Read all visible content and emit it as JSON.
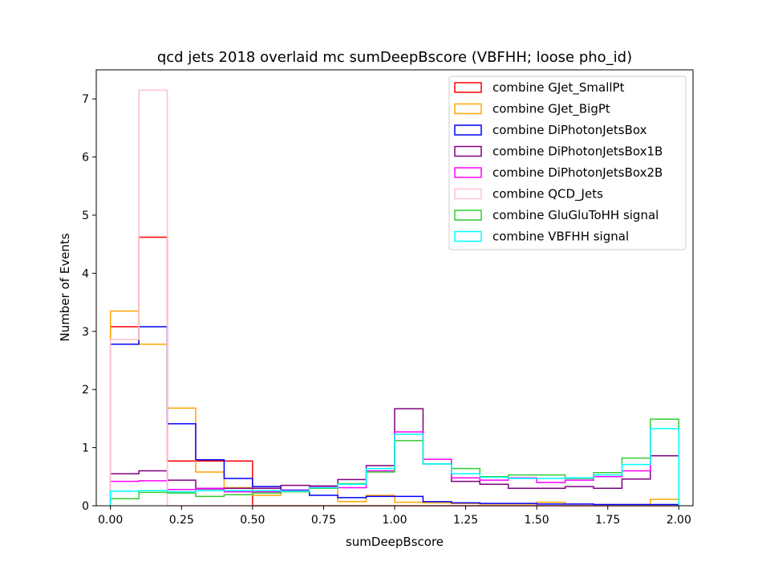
{
  "chart_data": {
    "type": "histogram-step",
    "title": "qcd jets 2018 overlaid mc sumDeepBscore (VBFHH; loose pho_id)",
    "xlabel": "sumDeepBscore",
    "ylabel": "Number of Events",
    "xlim": [
      -0.05,
      2.05
    ],
    "ylim": [
      0,
      7.5
    ],
    "bin_edges": [
      0.0,
      0.1,
      0.2,
      0.3,
      0.4,
      0.5,
      0.6,
      0.7,
      0.8,
      0.9,
      1.0,
      1.1,
      1.2,
      1.3,
      1.4,
      1.5,
      1.6,
      1.7,
      1.8,
      1.9,
      2.0
    ],
    "x_ticks": [
      "0.00",
      "0.25",
      "0.50",
      "0.75",
      "1.00",
      "1.25",
      "1.50",
      "1.75",
      "2.00"
    ],
    "y_ticks": [
      "0",
      "1",
      "2",
      "3",
      "4",
      "5",
      "6",
      "7"
    ],
    "legend_position": "upper right",
    "series": [
      {
        "name": "combine GJet_SmallPt",
        "color": "#ff0000",
        "values": [
          3.08,
          4.62,
          0.77,
          0.77,
          0.77,
          0,
          0,
          0,
          0,
          0,
          0,
          0,
          0,
          0,
          0,
          0,
          0,
          0,
          0,
          0
        ]
      },
      {
        "name": "combine GJet_BigPt",
        "color": "#ffa500",
        "values": [
          3.35,
          2.78,
          1.68,
          0.58,
          0.31,
          0.18,
          0.26,
          0.31,
          0.07,
          0.18,
          0.06,
          0.05,
          0.04,
          0.03,
          0.03,
          0.06,
          0.03,
          0.02,
          0.02,
          0.11
        ]
      },
      {
        "name": "combine DiPhotonJetsBox",
        "color": "#0000ff",
        "values": [
          2.78,
          3.08,
          1.41,
          0.79,
          0.47,
          0.33,
          0.27,
          0.18,
          0.14,
          0.16,
          0.16,
          0.07,
          0.05,
          0.04,
          0.04,
          0.03,
          0.03,
          0.02,
          0.02,
          0.02
        ]
      },
      {
        "name": "combine DiPhotonJetsBox1B",
        "color": "#800080",
        "values": [
          0.55,
          0.6,
          0.44,
          0.29,
          0.3,
          0.3,
          0.35,
          0.34,
          0.45,
          0.69,
          1.67,
          0.72,
          0.42,
          0.37,
          0.3,
          0.3,
          0.33,
          0.3,
          0.46,
          0.86
        ]
      },
      {
        "name": "combine DiPhotonJetsBox2B",
        "color": "#ff00ff",
        "values": [
          0.42,
          0.43,
          0.28,
          0.3,
          0.24,
          0.24,
          0.26,
          0.32,
          0.31,
          0.6,
          1.27,
          0.8,
          0.48,
          0.44,
          0.48,
          0.4,
          0.44,
          0.5,
          0.6,
          1.33
        ]
      },
      {
        "name": "combine QCD_Jets",
        "color": "#ffc0cb",
        "values": [
          2.86,
          7.15,
          0,
          0,
          0,
          0,
          0,
          0,
          0,
          0,
          0,
          0,
          0,
          0,
          0,
          0,
          0,
          0,
          0,
          0
        ]
      },
      {
        "name": "combine GluGluToHH signal",
        "color": "#32cd32",
        "values": [
          0.12,
          0.23,
          0.22,
          0.16,
          0.19,
          0.22,
          0.24,
          0.3,
          0.38,
          0.58,
          1.12,
          0.72,
          0.64,
          0.5,
          0.53,
          0.53,
          0.47,
          0.57,
          0.82,
          1.49
        ]
      },
      {
        "name": "combine VBFHH signal",
        "color": "#00ffff",
        "values": [
          0.25,
          0.26,
          0.24,
          0.26,
          0.26,
          0.26,
          0.25,
          0.31,
          0.37,
          0.64,
          1.23,
          0.72,
          0.55,
          0.49,
          0.47,
          0.47,
          0.48,
          0.53,
          0.71,
          1.33
        ]
      }
    ]
  }
}
